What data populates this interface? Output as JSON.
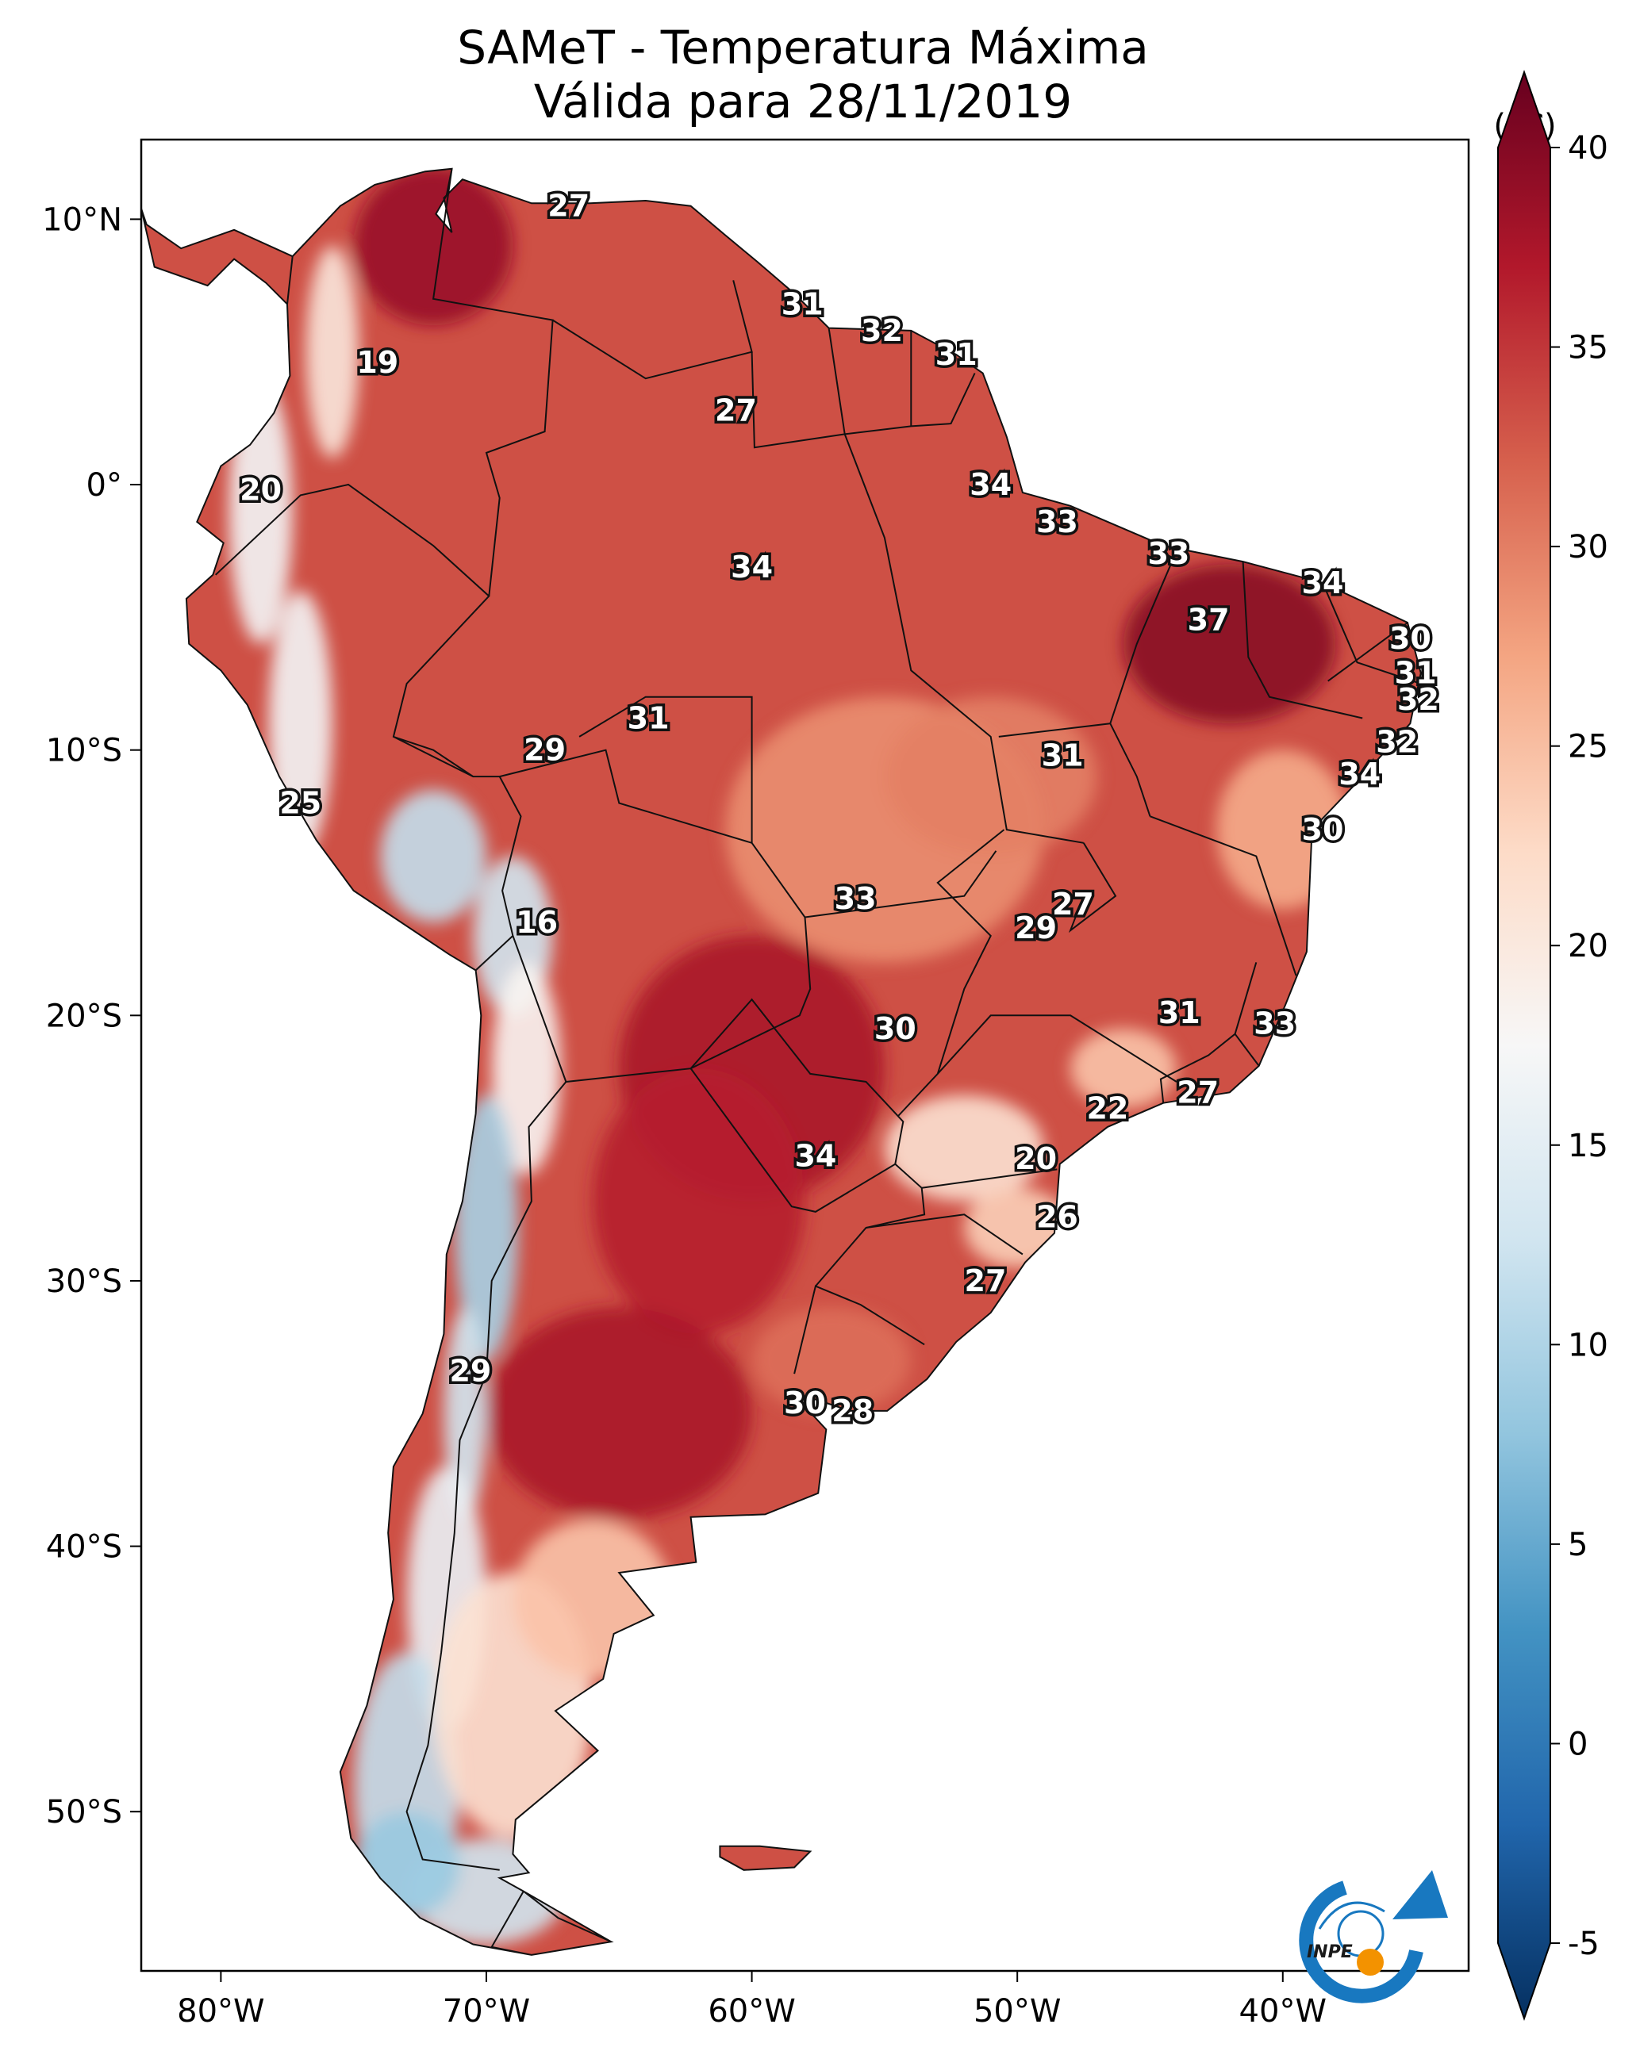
{
  "title": {
    "line1": "SAMeT - Temperatura Máxima",
    "line2": "Válida para 28/11/2019"
  },
  "colorbar": {
    "unit": "(°C)",
    "ticks": [
      "40",
      "35",
      "30",
      "25",
      "20",
      "15",
      "10",
      "5",
      "0",
      "-5"
    ],
    "tick_values": [
      40,
      35,
      30,
      25,
      20,
      15,
      10,
      5,
      0,
      -5
    ],
    "range": [
      -5,
      40
    ],
    "colors": [
      "#053061",
      "#2166ac",
      "#4393c3",
      "#92c5de",
      "#d1e5f0",
      "#f7f7f7",
      "#fddbc7",
      "#f4a582",
      "#d6604d",
      "#b2182b",
      "#67001f"
    ]
  },
  "axes": {
    "x_labels": [
      "80°W",
      "70°W",
      "60°W",
      "50°W",
      "40°W"
    ],
    "x_values": [
      -80,
      -70,
      -60,
      -50,
      -40
    ],
    "y_labels": [
      "10°N",
      "0°",
      "10°S",
      "20°S",
      "30°S",
      "40°S",
      "50°S"
    ],
    "y_values": [
      10,
      0,
      -10,
      -20,
      -30,
      -40,
      -50
    ],
    "lon_range": [
      -83,
      -33
    ],
    "lat_range": [
      -56,
      13
    ]
  },
  "logo": {
    "text": "INPE",
    "colors": {
      "blue": "#1878c0",
      "orange": "#f39200"
    }
  },
  "annotations": [
    {
      "text": "27",
      "lon": -66.9,
      "lat": 10.5
    },
    {
      "text": "19",
      "lon": -74.1,
      "lat": 4.6
    },
    {
      "text": "31",
      "lon": -58.1,
      "lat": 6.8
    },
    {
      "text": "32",
      "lon": -55.1,
      "lat": 5.8
    },
    {
      "text": "31",
      "lon": -52.3,
      "lat": 4.9
    },
    {
      "text": "27",
      "lon": -60.6,
      "lat": 2.8
    },
    {
      "text": "20",
      "lon": -78.5,
      "lat": -0.2
    },
    {
      "text": "34",
      "lon": -51.0,
      "lat": 0.0
    },
    {
      "text": "33",
      "lon": -48.5,
      "lat": -1.4
    },
    {
      "text": "33",
      "lon": -44.3,
      "lat": -2.6
    },
    {
      "text": "34",
      "lon": -60.0,
      "lat": -3.1
    },
    {
      "text": "34",
      "lon": -38.5,
      "lat": -3.7
    },
    {
      "text": "37",
      "lon": -42.8,
      "lat": -5.1
    },
    {
      "text": "30",
      "lon": -35.2,
      "lat": -5.8
    },
    {
      "text": "31",
      "lon": -35.0,
      "lat": -7.1
    },
    {
      "text": "32",
      "lon": -34.9,
      "lat": -8.1
    },
    {
      "text": "31",
      "lon": -63.9,
      "lat": -8.8
    },
    {
      "text": "32",
      "lon": -35.7,
      "lat": -9.7
    },
    {
      "text": "29",
      "lon": -67.8,
      "lat": -10.0
    },
    {
      "text": "31",
      "lon": -48.3,
      "lat": -10.2
    },
    {
      "text": "34",
      "lon": -37.1,
      "lat": -10.9
    },
    {
      "text": "25",
      "lon": -77.0,
      "lat": -12.0
    },
    {
      "text": "30",
      "lon": -38.5,
      "lat": -13.0
    },
    {
      "text": "33",
      "lon": -56.1,
      "lat": -15.6
    },
    {
      "text": "27",
      "lon": -47.9,
      "lat": -15.8
    },
    {
      "text": "16",
      "lon": -68.1,
      "lat": -16.5
    },
    {
      "text": "29",
      "lon": -49.3,
      "lat": -16.7
    },
    {
      "text": "31",
      "lon": -43.9,
      "lat": -19.9
    },
    {
      "text": "33",
      "lon": -40.3,
      "lat": -20.3
    },
    {
      "text": "30",
      "lon": -54.6,
      "lat": -20.5
    },
    {
      "text": "27",
      "lon": -43.2,
      "lat": -22.9
    },
    {
      "text": "22",
      "lon": -46.6,
      "lat": -23.5
    },
    {
      "text": "20",
      "lon": -49.3,
      "lat": -25.4
    },
    {
      "text": "34",
      "lon": -57.6,
      "lat": -25.3
    },
    {
      "text": "26",
      "lon": -48.5,
      "lat": -27.6
    },
    {
      "text": "27",
      "lon": -51.2,
      "lat": -30.0
    },
    {
      "text": "29",
      "lon": -70.6,
      "lat": -33.4
    },
    {
      "text": "30",
      "lon": -58.0,
      "lat": -34.6
    },
    {
      "text": "28",
      "lon": -56.2,
      "lat": -34.9
    }
  ]
}
